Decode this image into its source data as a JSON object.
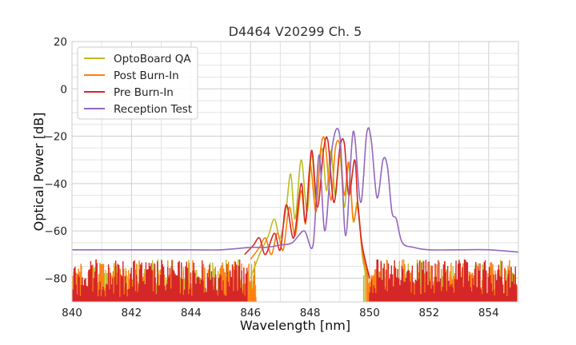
{
  "chart_data": {
    "type": "line",
    "title": "D4464 V20299 Ch. 5",
    "xlabel": "Wavelength [nm]",
    "ylabel": "Optical Power [dB]",
    "xlim": [
      840,
      855
    ],
    "ylim": [
      -90,
      20
    ],
    "xticks": [
      840,
      842,
      844,
      846,
      848,
      850,
      852,
      854
    ],
    "yticks": [
      20,
      0,
      -20,
      -40,
      -60,
      -80
    ],
    "grid": true,
    "legend_position": "top-left",
    "noise_floor": -90,
    "series": [
      {
        "name": "OptoBoard QA",
        "color": "#bcbd22",
        "x": [
          846.0,
          846.3,
          846.6,
          846.8,
          847.0,
          847.2,
          847.35,
          847.5,
          847.7,
          847.9,
          848.05,
          848.2,
          848.4,
          848.55,
          848.7,
          848.85,
          849.0,
          849.15,
          849.3,
          849.45,
          849.6,
          849.75,
          849.9
        ],
        "y": [
          -80,
          -70,
          -62,
          -55,
          -63,
          -50,
          -36,
          -55,
          -30,
          -52,
          -27,
          -47,
          -25,
          -43,
          -26,
          -45,
          -28,
          -50,
          -32,
          -56,
          -48,
          -70,
          -80
        ]
      },
      {
        "name": "Post Burn-In",
        "color": "#ff7f0e",
        "x": [
          846.0,
          846.3,
          846.5,
          846.7,
          846.9,
          847.1,
          847.3,
          847.5,
          847.7,
          847.85,
          848.0,
          848.2,
          848.35,
          848.5,
          848.7,
          848.85,
          849.0,
          849.15,
          849.3,
          849.45,
          849.6,
          849.75,
          849.95
        ],
        "y": [
          -72,
          -67,
          -63,
          -70,
          -61,
          -68,
          -50,
          -62,
          -43,
          -57,
          -32,
          -52,
          -26,
          -22,
          -47,
          -25,
          -24,
          -45,
          -31,
          -55,
          -50,
          -68,
          -80
        ]
      },
      {
        "name": "Pre Burn-In",
        "color": "#d62728",
        "x": [
          845.8,
          846.1,
          846.3,
          846.5,
          846.8,
          847.0,
          847.2,
          847.45,
          847.7,
          847.85,
          848.05,
          848.25,
          848.45,
          848.6,
          848.8,
          849.0,
          849.15,
          849.3,
          849.5,
          849.6,
          849.75,
          850.0
        ],
        "y": [
          -70,
          -66,
          -63,
          -70,
          -61,
          -68,
          -49,
          -63,
          -40,
          -56,
          -26,
          -50,
          -26,
          -22,
          -48,
          -25,
          -23,
          -45,
          -30,
          -48,
          -66,
          -80
        ]
      },
      {
        "name": "Reception Test",
        "color": "#9467bd",
        "x": [
          840.0,
          842.0,
          844.0,
          845.0,
          846.0,
          846.5,
          847.0,
          847.4,
          847.8,
          848.1,
          848.3,
          848.5,
          848.75,
          849.0,
          849.2,
          849.45,
          849.7,
          849.9,
          850.05,
          850.25,
          850.45,
          850.6,
          850.75,
          850.9,
          851.1,
          851.5,
          852.0,
          853.0,
          854.0,
          855.0
        ],
        "y": [
          -68,
          -68,
          -68,
          -68,
          -67,
          -67,
          -66,
          -65,
          -60,
          -66,
          -28,
          -60,
          -24,
          -20,
          -62,
          -18,
          -48,
          -19,
          -21,
          -46,
          -30,
          -33,
          -52,
          -55,
          -65,
          -67,
          -68,
          -68,
          -68,
          -69
        ]
      }
    ]
  }
}
